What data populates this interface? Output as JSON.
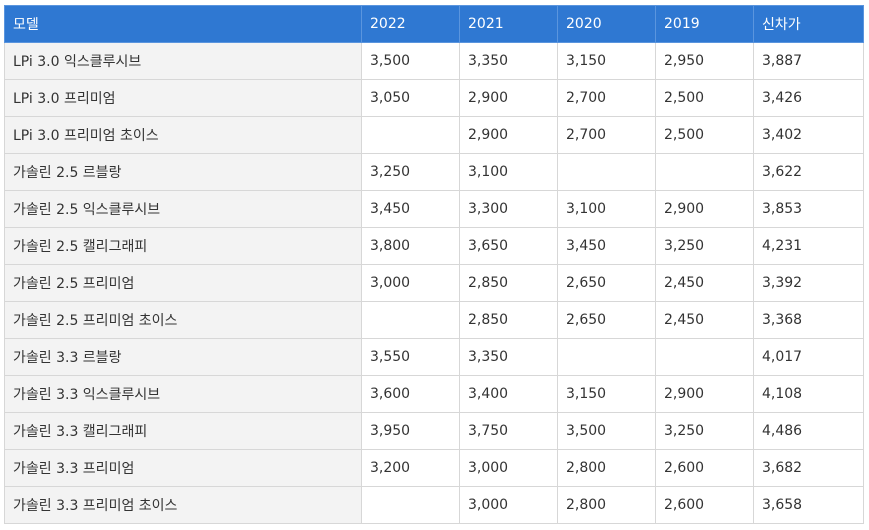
{
  "table": {
    "headers": [
      "모델",
      "2022",
      "2021",
      "2020",
      "2019",
      "신차가"
    ],
    "rows": [
      [
        "LPi 3.0 익스클루시브",
        "3,500",
        "3,350",
        "3,150",
        "2,950",
        "3,887"
      ],
      [
        "LPi 3.0 프리미엄",
        "3,050",
        "2,900",
        "2,700",
        "2,500",
        "3,426"
      ],
      [
        "LPi 3.0 프리미엄 초이스",
        "",
        "2,900",
        "2,700",
        "2,500",
        "3,402"
      ],
      [
        "가솔린 2.5 르블랑",
        "3,250",
        "3,100",
        "",
        "",
        "3,622"
      ],
      [
        "가솔린 2.5 익스클루시브",
        "3,450",
        "3,300",
        "3,100",
        "2,900",
        "3,853"
      ],
      [
        "가솔린 2.5 캘리그래피",
        "3,800",
        "3,650",
        "3,450",
        "3,250",
        "4,231"
      ],
      [
        "가솔린 2.5 프리미엄",
        "3,000",
        "2,850",
        "2,650",
        "2,450",
        "3,392"
      ],
      [
        "가솔린 2.5 프리미엄 초이스",
        "",
        "2,850",
        "2,650",
        "2,450",
        "3,368"
      ],
      [
        "가솔린 3.3 르블랑",
        "3,550",
        "3,350",
        "",
        "",
        "4,017"
      ],
      [
        "가솔린 3.3 익스클루시브",
        "3,600",
        "3,400",
        "3,150",
        "2,900",
        "4,108"
      ],
      [
        "가솔린 3.3 캘리그래피",
        "3,950",
        "3,750",
        "3,500",
        "3,250",
        "4,486"
      ],
      [
        "가솔린 3.3 프리미엄",
        "3,200",
        "3,000",
        "2,800",
        "2,600",
        "3,682"
      ],
      [
        "가솔린 3.3 프리미엄 초이스",
        "",
        "3,000",
        "2,800",
        "2,600",
        "3,658"
      ]
    ]
  },
  "colors": {
    "header_bg": "#2f78d2",
    "model_col_bg": "#f3f3f3",
    "border": "#d7d7d7"
  }
}
